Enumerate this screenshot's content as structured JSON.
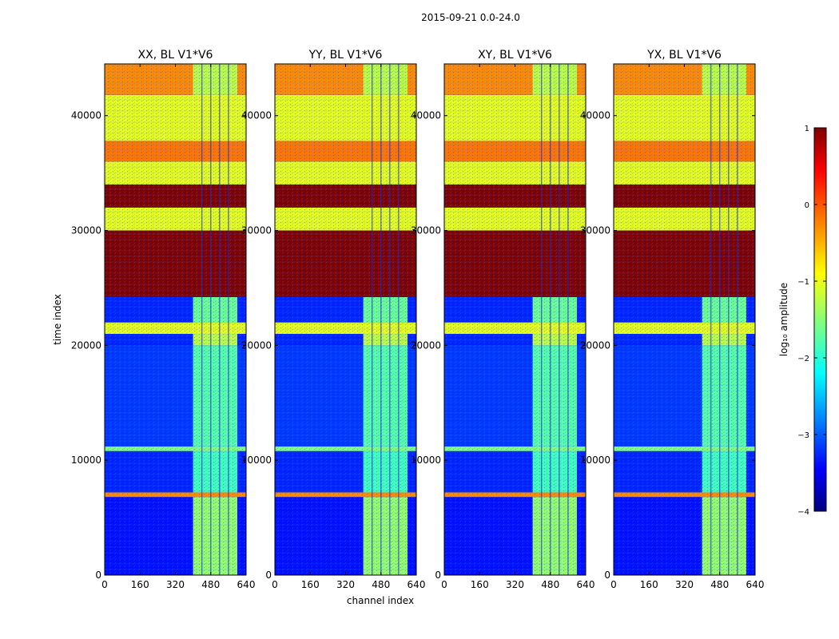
{
  "chart_data": {
    "type": "heatmap",
    "suptitle": "2015-09-21 0.0-24.0",
    "xlabel": "channel index",
    "ylabel": "time index",
    "xlim": [
      0,
      640
    ],
    "ylim": [
      0,
      44500
    ],
    "xticks": [
      0,
      160,
      320,
      480,
      640
    ],
    "yticks": [
      0,
      10000,
      20000,
      30000,
      40000
    ],
    "panels": [
      {
        "title": "XX, BL V1*V6",
        "band_channels": [
          400,
          600
        ]
      },
      {
        "title": "YY, BL V1*V6",
        "band_channels": [
          400,
          600
        ]
      },
      {
        "title": "XY, BL V1*V6",
        "band_channels": [
          400,
          600
        ]
      },
      {
        "title": "YX, BL V1*V6",
        "band_channels": [
          400,
          600
        ]
      }
    ],
    "time_segments": [
      {
        "t0": 0,
        "t1": 6800,
        "level": -3.3,
        "band_level": -1.4
      },
      {
        "t0": 6800,
        "t1": 7200,
        "level": -0.3,
        "band_level": -0.3
      },
      {
        "t0": 7200,
        "t1": 10800,
        "level": -3.2,
        "band_level": -1.8
      },
      {
        "t0": 10800,
        "t1": 11200,
        "level": -1.5,
        "band_level": -1.5
      },
      {
        "t0": 11200,
        "t1": 20000,
        "level": -3.1,
        "band_level": -1.7
      },
      {
        "t0": 20000,
        "t1": 21000,
        "level": -3.2,
        "band_level": -1.2
      },
      {
        "t0": 21000,
        "t1": 22000,
        "level": -1.0,
        "band_level": -1.0
      },
      {
        "t0": 22000,
        "t1": 24200,
        "level": -3.2,
        "band_level": -1.6
      },
      {
        "t0": 24200,
        "t1": 30000,
        "level": 1.0,
        "band_level": 1.0
      },
      {
        "t0": 30000,
        "t1": 32000,
        "level": -1.0,
        "band_level": -1.0
      },
      {
        "t0": 32000,
        "t1": 34000,
        "level": 1.0,
        "band_level": 1.0
      },
      {
        "t0": 34000,
        "t1": 36000,
        "level": -1.0,
        "band_level": -1.0
      },
      {
        "t0": 36000,
        "t1": 37800,
        "level": -0.2,
        "band_level": -0.2
      },
      {
        "t0": 37800,
        "t1": 41800,
        "level": -1.0,
        "band_level": -1.0
      },
      {
        "t0": 41800,
        "t1": 44500,
        "level": -0.3,
        "band_level": -1.2
      }
    ],
    "colorbar": {
      "label": "log₁₀ amplitude",
      "min": -4,
      "max": 1,
      "ticks": [
        {
          "value": 1,
          "label": "1"
        },
        {
          "value": 0,
          "label": "0"
        },
        {
          "value": -1,
          "label": "−1"
        },
        {
          "value": -2,
          "label": "−2"
        },
        {
          "value": -3,
          "label": "−3"
        },
        {
          "value": -4,
          "label": "−4"
        }
      ],
      "colormap": "jet"
    }
  }
}
